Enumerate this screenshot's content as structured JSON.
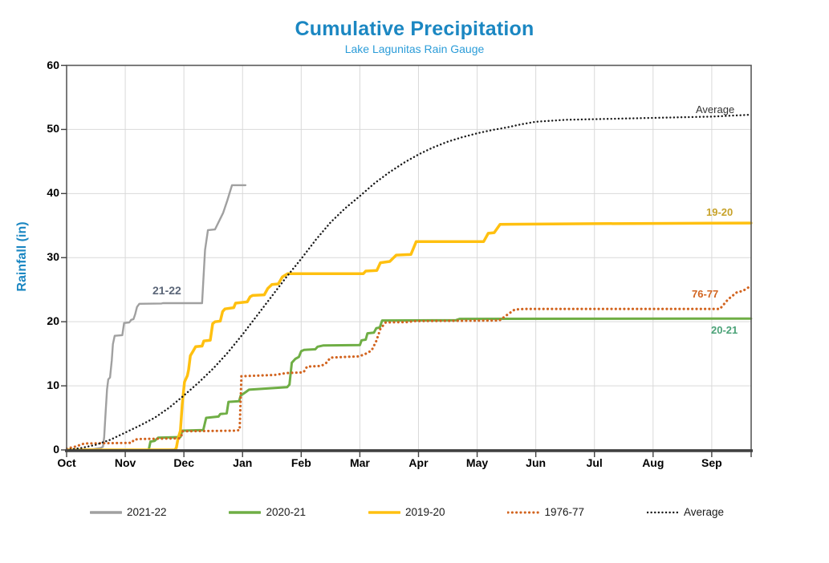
{
  "chart_data": {
    "type": "line",
    "title": "Cumulative Precipitation",
    "subtitle": "Lake Lagunitas Rain Gauge",
    "title_color": "#1b87c2",
    "subtitle_color": "#2b9cd8",
    "ylabel": "Rainfall (in)",
    "ylabel_color": "#1b87c2",
    "x_tick_labels": [
      "Oct",
      "Nov",
      "Dec",
      "Jan",
      "Feb",
      "Mar",
      "Apr",
      "May",
      "Jun",
      "Jul",
      "Aug",
      "Sep"
    ],
    "y_ticks": [
      0,
      10,
      20,
      30,
      40,
      50,
      60
    ],
    "ylim": [
      0,
      60
    ],
    "xlim_months": [
      0,
      11.67
    ],
    "x_unit": "months after Oct 1 (water year)",
    "y_unit": "inches",
    "grid": true,
    "grid_color": "#d9d9d9",
    "border_color": "#595959",
    "axis_color": "#404040",
    "legend_position": "bottom",
    "series": [
      {
        "name": "2021-22",
        "color": "#a0a0a0",
        "style": "solid",
        "width": 2.4,
        "inline_label": {
          "text": "21-22",
          "color": "#5b6678"
        },
        "points": [
          [
            0,
            0
          ],
          [
            0.45,
            0.1
          ],
          [
            0.58,
            0.3
          ],
          [
            0.62,
            0.5
          ],
          [
            0.64,
            2.0
          ],
          [
            0.66,
            5.0
          ],
          [
            0.69,
            9.5
          ],
          [
            0.71,
            11.0
          ],
          [
            0.74,
            11.3
          ],
          [
            0.77,
            14.0
          ],
          [
            0.79,
            16.5
          ],
          [
            0.82,
            17.8
          ],
          [
            0.95,
            17.9
          ],
          [
            0.98,
            19.8
          ],
          [
            1.07,
            19.9
          ],
          [
            1.1,
            20.3
          ],
          [
            1.14,
            20.4
          ],
          [
            1.17,
            21.2
          ],
          [
            1.2,
            22.3
          ],
          [
            1.24,
            22.8
          ],
          [
            1.62,
            22.85
          ],
          [
            1.64,
            22.9
          ],
          [
            2.31,
            22.9
          ],
          [
            2.36,
            31.2
          ],
          [
            2.41,
            34.3
          ],
          [
            2.53,
            34.4
          ],
          [
            2.67,
            37.0
          ],
          [
            2.74,
            38.9
          ],
          [
            2.82,
            41.3
          ],
          [
            3.05,
            41.3
          ]
        ]
      },
      {
        "name": "2020-21",
        "color": "#6fae45",
        "style": "solid",
        "width": 3,
        "inline_label": {
          "text": "20-21",
          "color": "#4aa277"
        },
        "points": [
          [
            0,
            0
          ],
          [
            1.4,
            0
          ],
          [
            1.43,
            1.3
          ],
          [
            1.5,
            1.4
          ],
          [
            1.56,
            1.9
          ],
          [
            1.94,
            2.0
          ],
          [
            1.97,
            3.0
          ],
          [
            2.33,
            3.1
          ],
          [
            2.38,
            5.0
          ],
          [
            2.59,
            5.2
          ],
          [
            2.62,
            5.6
          ],
          [
            2.73,
            5.7
          ],
          [
            2.76,
            7.5
          ],
          [
            2.94,
            7.6
          ],
          [
            2.97,
            8.5
          ],
          [
            3.05,
            9.0
          ],
          [
            3.11,
            9.4
          ],
          [
            3.76,
            9.8
          ],
          [
            3.8,
            10.2
          ],
          [
            3.84,
            13.6
          ],
          [
            3.9,
            14.2
          ],
          [
            3.96,
            14.5
          ],
          [
            4.0,
            15.4
          ],
          [
            4.05,
            15.6
          ],
          [
            4.24,
            15.7
          ],
          [
            4.28,
            16.1
          ],
          [
            4.38,
            16.3
          ],
          [
            5.0,
            16.35
          ],
          [
            5.03,
            17.1
          ],
          [
            5.1,
            17.2
          ],
          [
            5.13,
            18.2
          ],
          [
            5.24,
            18.3
          ],
          [
            5.28,
            19.0
          ],
          [
            5.34,
            19.1
          ],
          [
            5.38,
            20.2
          ],
          [
            6.64,
            20.25
          ],
          [
            6.7,
            20.45
          ],
          [
            11.67,
            20.5
          ]
        ]
      },
      {
        "name": "2019-20",
        "color": "#ffc010",
        "style": "solid",
        "width": 3.5,
        "inline_label": {
          "text": "19-20",
          "color": "#c7a229"
        },
        "points": [
          [
            0,
            0
          ],
          [
            1.84,
            0
          ],
          [
            1.87,
            0.3
          ],
          [
            1.9,
            1.8
          ],
          [
            1.94,
            3.0
          ],
          [
            1.97,
            7.0
          ],
          [
            2.01,
            10.6
          ],
          [
            2.06,
            11.6
          ],
          [
            2.08,
            12.5
          ],
          [
            2.11,
            14.7
          ],
          [
            2.15,
            15.3
          ],
          [
            2.2,
            16.1
          ],
          [
            2.31,
            16.2
          ],
          [
            2.34,
            17.0
          ],
          [
            2.45,
            17.1
          ],
          [
            2.49,
            19.7
          ],
          [
            2.53,
            20.0
          ],
          [
            2.62,
            20.1
          ],
          [
            2.66,
            21.6
          ],
          [
            2.7,
            22.0
          ],
          [
            2.85,
            22.2
          ],
          [
            2.88,
            22.9
          ],
          [
            3.08,
            23.1
          ],
          [
            3.13,
            23.9
          ],
          [
            3.17,
            24.1
          ],
          [
            3.37,
            24.2
          ],
          [
            3.43,
            25.2
          ],
          [
            3.5,
            25.8
          ],
          [
            3.61,
            25.9
          ],
          [
            3.68,
            27.0
          ],
          [
            3.77,
            27.5
          ],
          [
            5.06,
            27.5
          ],
          [
            5.1,
            27.9
          ],
          [
            5.29,
            28.0
          ],
          [
            5.35,
            29.2
          ],
          [
            5.51,
            29.4
          ],
          [
            5.62,
            30.4
          ],
          [
            5.87,
            30.5
          ],
          [
            5.96,
            32.5
          ],
          [
            7.11,
            32.5
          ],
          [
            7.19,
            33.8
          ],
          [
            7.29,
            33.9
          ],
          [
            7.39,
            35.2
          ],
          [
            9.0,
            35.3
          ],
          [
            11.67,
            35.4
          ]
        ]
      },
      {
        "name": "1976-77",
        "color": "#d2641f",
        "style": "dotted",
        "width": 3.1,
        "inline_label": {
          "text": "76-77",
          "color": "#d2641f"
        },
        "points": [
          [
            0,
            0.2
          ],
          [
            0.14,
            0.5
          ],
          [
            0.24,
            0.8
          ],
          [
            0.3,
            1.0
          ],
          [
            1.11,
            1.1
          ],
          [
            1.15,
            1.6
          ],
          [
            1.25,
            1.7
          ],
          [
            1.92,
            1.8
          ],
          [
            1.95,
            2.0
          ],
          [
            1.98,
            2.9
          ],
          [
            2.88,
            3.0
          ],
          [
            2.95,
            3.1
          ],
          [
            2.98,
            11.5
          ],
          [
            3.55,
            11.7
          ],
          [
            3.75,
            12.0
          ],
          [
            4.04,
            12.1
          ],
          [
            4.1,
            13.0
          ],
          [
            4.34,
            13.1
          ],
          [
            4.42,
            13.5
          ],
          [
            4.5,
            14.4
          ],
          [
            4.99,
            14.6
          ],
          [
            5.1,
            15.0
          ],
          [
            5.2,
            15.5
          ],
          [
            5.28,
            17.0
          ],
          [
            5.35,
            18.9
          ],
          [
            5.44,
            19.9
          ],
          [
            5.84,
            19.95
          ],
          [
            5.9,
            20.1
          ],
          [
            7.38,
            20.2
          ],
          [
            7.5,
            21.0
          ],
          [
            7.64,
            21.9
          ],
          [
            7.8,
            22.0
          ],
          [
            11.14,
            22.0
          ],
          [
            11.28,
            23.5
          ],
          [
            11.43,
            24.6
          ],
          [
            11.53,
            24.8
          ],
          [
            11.67,
            25.6
          ]
        ]
      },
      {
        "name": "Average",
        "color": "#1a1a1a",
        "style": "dotted",
        "width": 2.4,
        "inline_label": {
          "text": "Average",
          "color": "#333333"
        },
        "points": [
          [
            0,
            0
          ],
          [
            0.25,
            0.3
          ],
          [
            0.5,
            0.8
          ],
          [
            0.75,
            1.6
          ],
          [
            1,
            2.7
          ],
          [
            1.25,
            3.8
          ],
          [
            1.5,
            5.0
          ],
          [
            1.75,
            6.6
          ],
          [
            2,
            8.5
          ],
          [
            2.25,
            10.5
          ],
          [
            2.5,
            12.7
          ],
          [
            2.75,
            15.2
          ],
          [
            3,
            18.0
          ],
          [
            3.25,
            21.0
          ],
          [
            3.5,
            24.0
          ],
          [
            3.75,
            27.0
          ],
          [
            4,
            29.8
          ],
          [
            4.25,
            32.8
          ],
          [
            4.5,
            35.5
          ],
          [
            4.75,
            37.7
          ],
          [
            5,
            39.6
          ],
          [
            5.25,
            41.6
          ],
          [
            5.5,
            43.3
          ],
          [
            5.75,
            44.8
          ],
          [
            6,
            46.1
          ],
          [
            6.25,
            47.2
          ],
          [
            6.5,
            48.1
          ],
          [
            6.75,
            48.8
          ],
          [
            7,
            49.4
          ],
          [
            7.25,
            49.9
          ],
          [
            7.5,
            50.3
          ],
          [
            7.75,
            50.8
          ],
          [
            8,
            51.2
          ],
          [
            8.5,
            51.5
          ],
          [
            9,
            51.6
          ],
          [
            9.5,
            51.7
          ],
          [
            10,
            51.8
          ],
          [
            10.5,
            51.9
          ],
          [
            11,
            52.0
          ],
          [
            11.67,
            52.3
          ]
        ]
      }
    ]
  }
}
